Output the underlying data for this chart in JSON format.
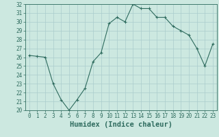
{
  "xlabel": "Humidex (Indice chaleur)",
  "hours": [
    0,
    1,
    2,
    3,
    4,
    5,
    6,
    7,
    8,
    9,
    10,
    11,
    12,
    13,
    14,
    15,
    16,
    17,
    18,
    19,
    20,
    21,
    22,
    23
  ],
  "values": [
    26.2,
    26.1,
    26.0,
    23.0,
    21.2,
    20.0,
    21.2,
    22.5,
    25.5,
    26.5,
    29.8,
    30.5,
    30.0,
    32.0,
    31.5,
    31.5,
    30.5,
    30.5,
    29.5,
    29.0,
    28.5,
    27.0,
    25.0,
    27.5
  ],
  "ylim": [
    20,
    32
  ],
  "yticks": [
    20,
    21,
    22,
    23,
    24,
    25,
    26,
    27,
    28,
    29,
    30,
    31,
    32
  ],
  "line_color": "#2e6b5e",
  "marker_color": "#2e6b5e",
  "bg_color": "#cce8e0",
  "grid_color": "#aacccc",
  "axis_color": "#2e6b5e",
  "label_color": "#2e6b5e",
  "tick_fontsize": 5.5,
  "xlabel_fontsize": 7.5
}
